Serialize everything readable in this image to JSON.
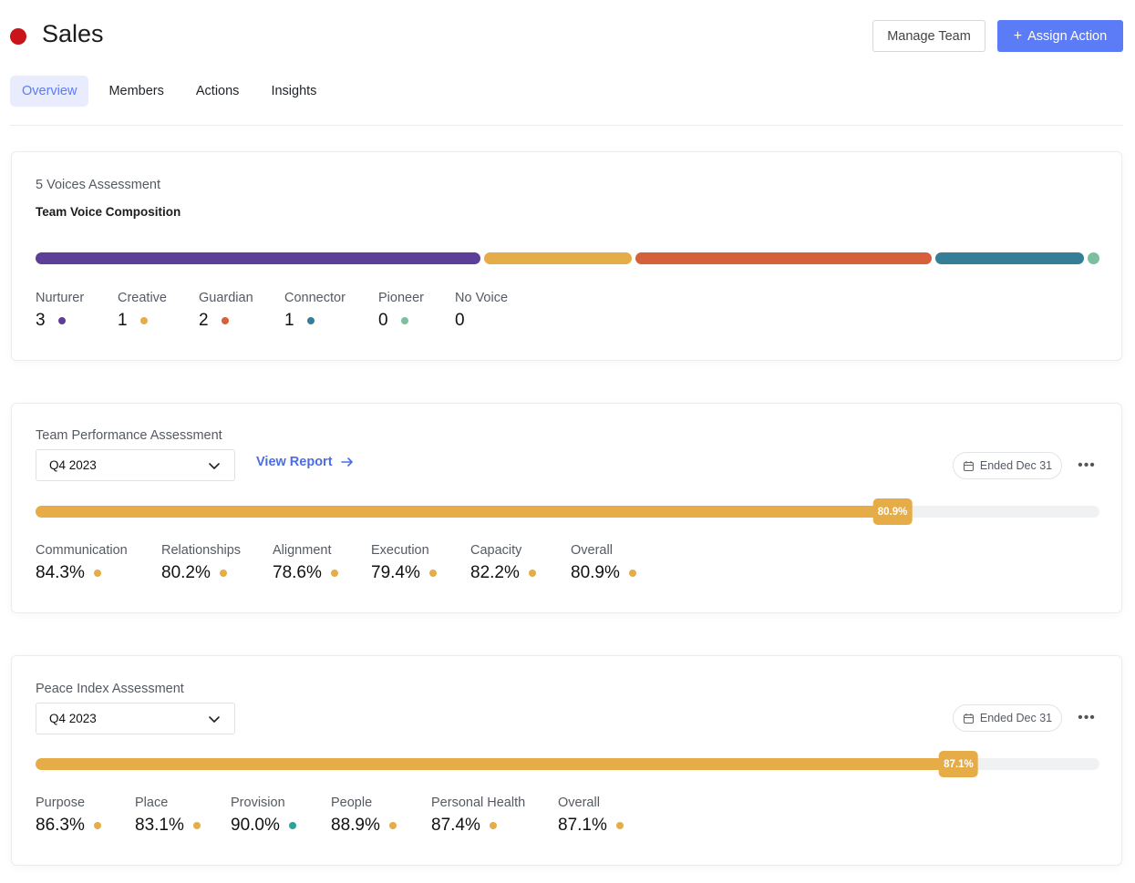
{
  "header": {
    "title": "Sales",
    "team_color": "#c8141a",
    "manage_label": "Manage Team",
    "assign_label": "Assign Action",
    "assign_icon": "plus-icon"
  },
  "tabs": [
    {
      "label": "Overview",
      "active": true
    },
    {
      "label": "Members",
      "active": false
    },
    {
      "label": "Actions",
      "active": false
    },
    {
      "label": "Insights",
      "active": false
    }
  ],
  "voices": {
    "label": "5 Voices Assessment",
    "subtitle": "Team Voice Composition",
    "segments": [
      {
        "name": "Nurturer",
        "count": "3",
        "color": "#5d3f97",
        "share": 3
      },
      {
        "name": "Creative",
        "count": "1",
        "color": "#e6ac48",
        "share": 1
      },
      {
        "name": "Guardian",
        "count": "2",
        "color": "#d6603a",
        "share": 2
      },
      {
        "name": "Connector",
        "count": "1",
        "color": "#357e98",
        "share": 1
      },
      {
        "name": "Pioneer",
        "count": "0",
        "color": "#7bbf9f",
        "share": 0
      },
      {
        "name": "No Voice",
        "count": "0",
        "color": "",
        "share": 0
      }
    ]
  },
  "performance": {
    "label": "Team Performance Assessment",
    "period": "Q4 2023",
    "view_report": "View Report",
    "ended": "Ended Dec 31",
    "progress": 80.9,
    "progress_label": "80.9%",
    "accent": "#e6ac48",
    "metrics": [
      {
        "name": "Communication",
        "value": "84.3%",
        "color": "#e6ac48"
      },
      {
        "name": "Relationships",
        "value": "80.2%",
        "color": "#e6ac48"
      },
      {
        "name": "Alignment",
        "value": "78.6%",
        "color": "#e6ac48"
      },
      {
        "name": "Execution",
        "value": "79.4%",
        "color": "#e6ac48"
      },
      {
        "name": "Capacity",
        "value": "82.2%",
        "color": "#e6ac48"
      },
      {
        "name": "Overall",
        "value": "80.9%",
        "color": "#e6ac48"
      }
    ]
  },
  "peace": {
    "label": "Peace Index Assessment",
    "period": "Q4 2023",
    "ended": "Ended Dec 31",
    "progress": 87.1,
    "progress_label": "87.1%",
    "metrics": [
      {
        "name": "Purpose",
        "value": "86.3%",
        "color": "#e6ac48"
      },
      {
        "name": "Place",
        "value": "83.1%",
        "color": "#e6ac48"
      },
      {
        "name": "Provision",
        "value": "90.0%",
        "color": "#2aa39a"
      },
      {
        "name": "People",
        "value": "88.9%",
        "color": "#e6ac48"
      },
      {
        "name": "Personal Health",
        "value": "87.4%",
        "color": "#e6ac48"
      },
      {
        "name": "Overall",
        "value": "87.1%",
        "color": "#e6ac48"
      }
    ]
  }
}
